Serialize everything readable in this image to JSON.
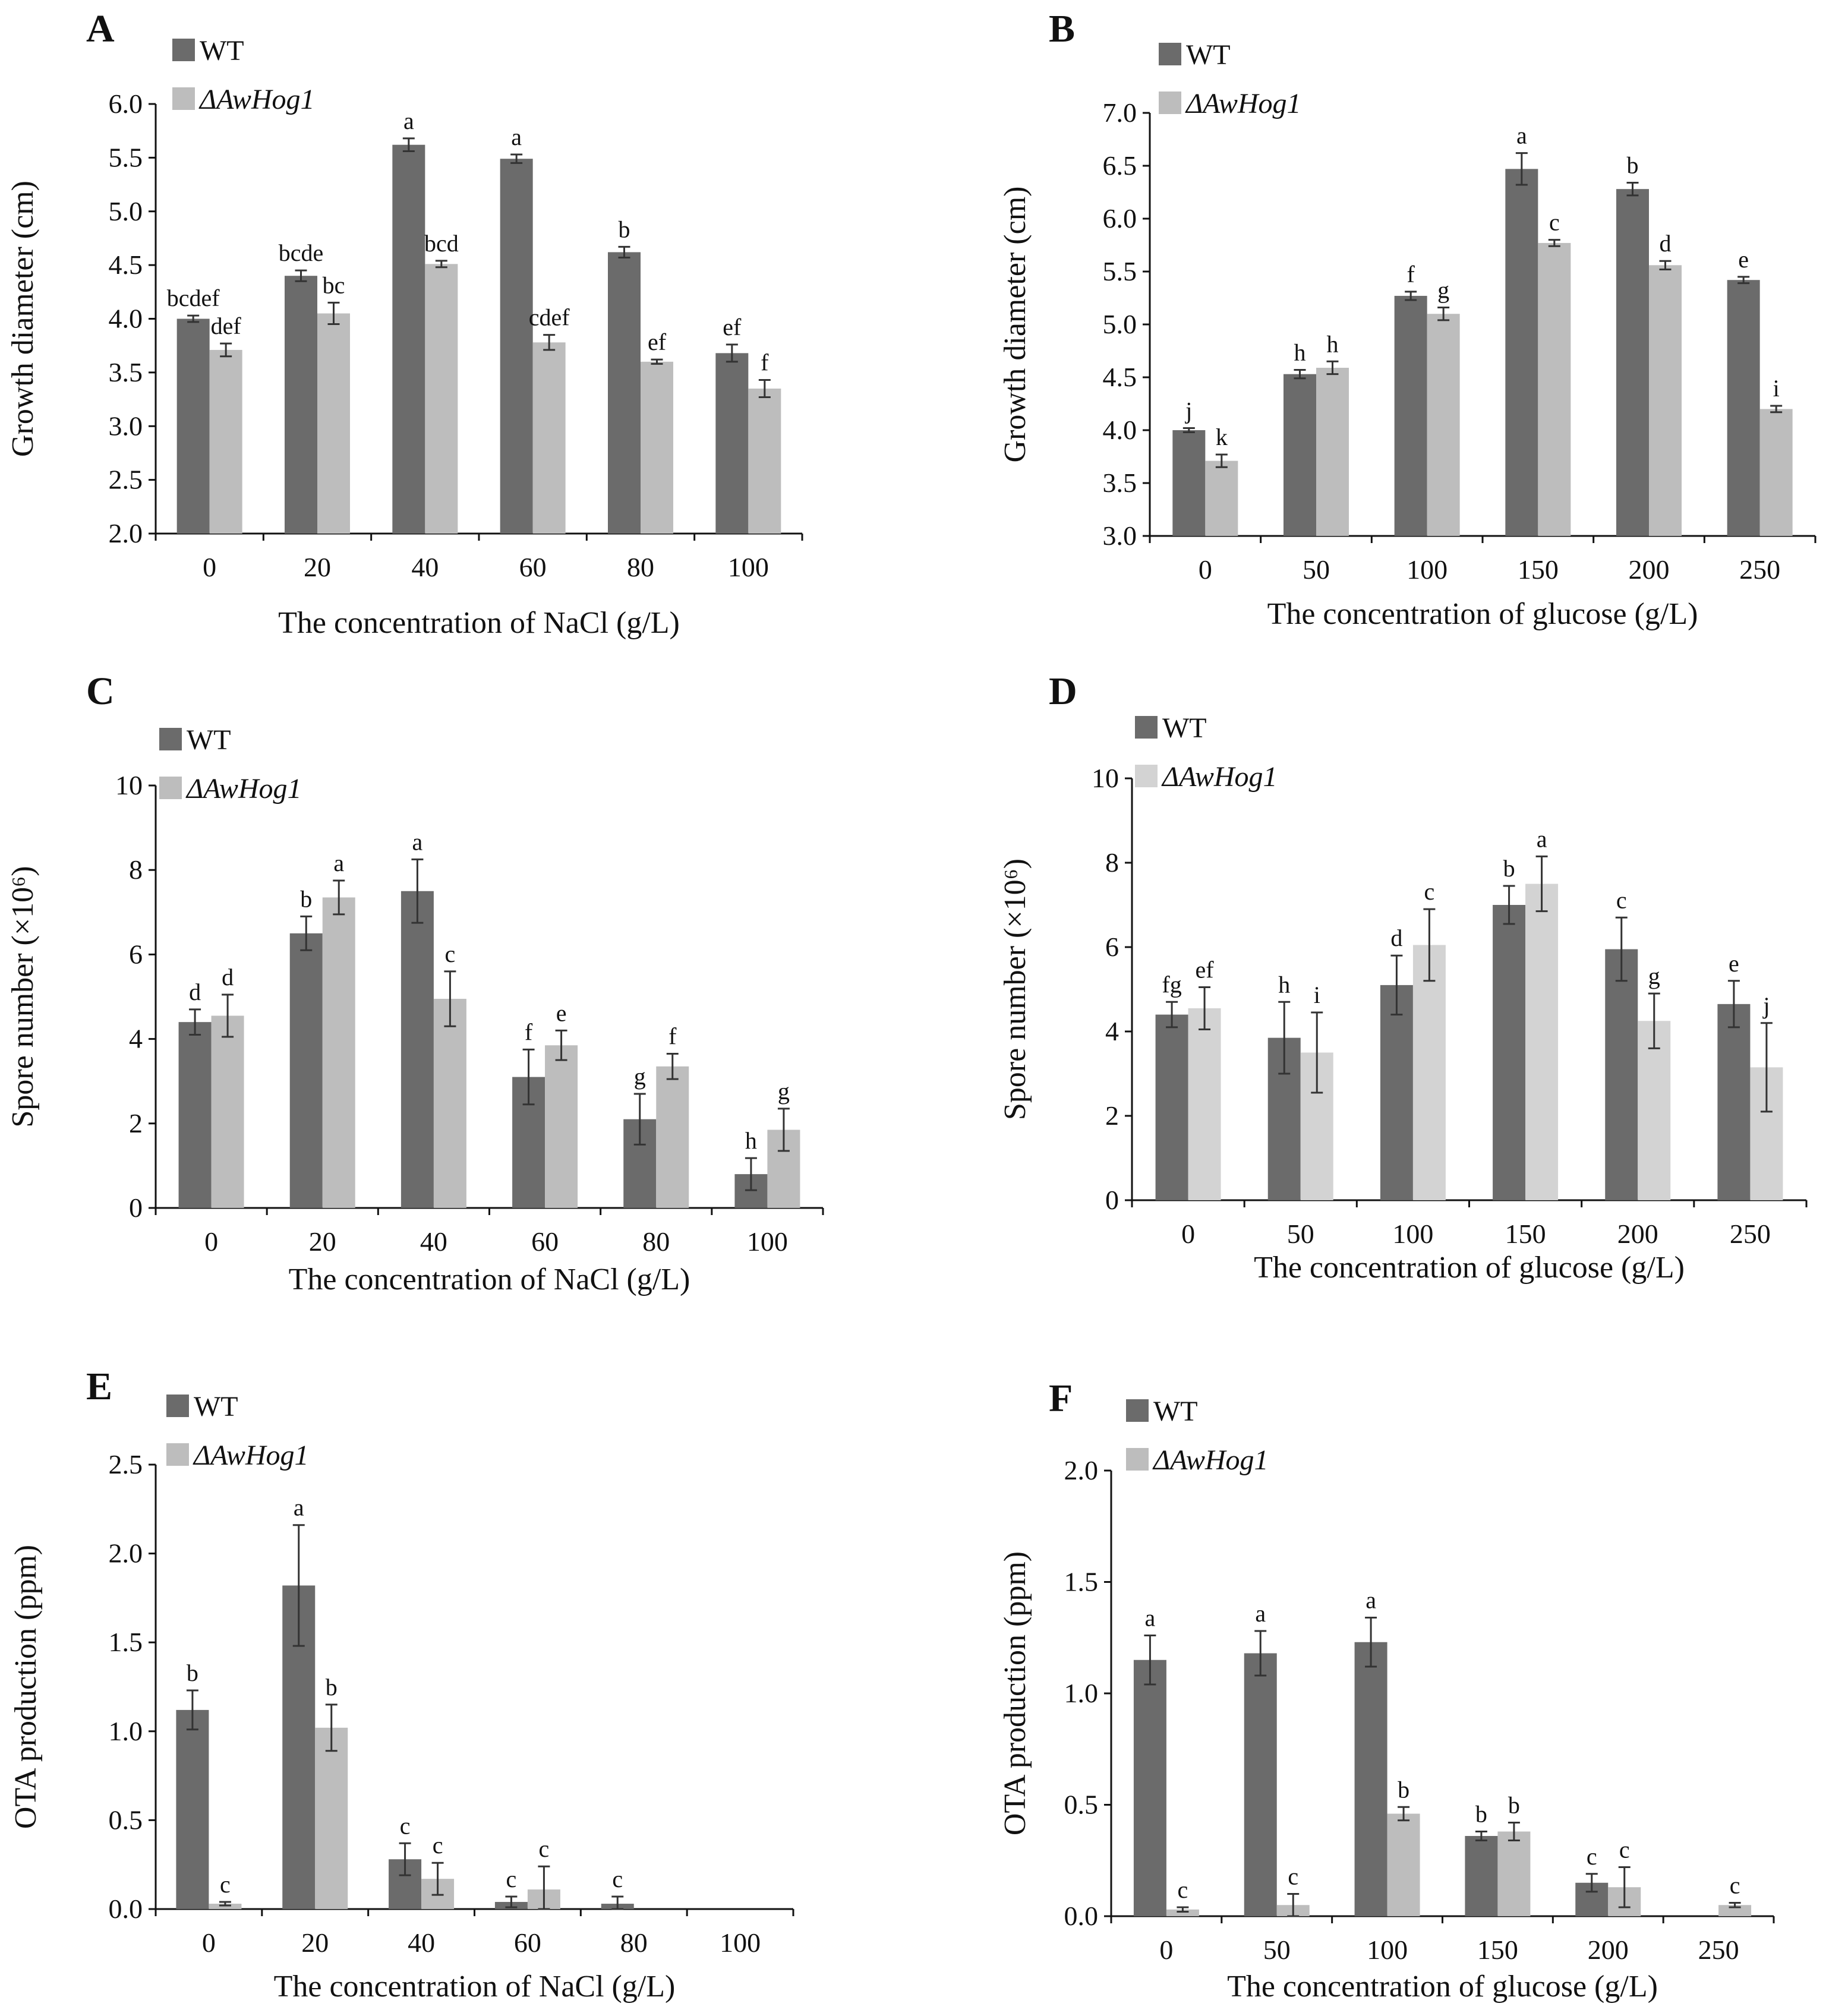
{
  "figure": {
    "colors": {
      "wt": "#6b6b6b",
      "mutant": "#bdbdbd",
      "mutant_light": "#d3d3d3",
      "axis": "#111111",
      "error_bar": "#333333"
    }
  },
  "chart_data": [
    {
      "panel": "A",
      "type": "bar",
      "legend": [
        "WT",
        "ΔAwHog1"
      ],
      "xlabel": "The concentration of NaCl (g/L)",
      "ylabel": "Growth diameter (cm)",
      "ylim": [
        2.0,
        6.0
      ],
      "yticks": [
        "2.0",
        "2.5",
        "3.0",
        "3.5",
        "4.0",
        "4.5",
        "5.0",
        "5.5",
        "6.0"
      ],
      "categories": [
        "0",
        "20",
        "40",
        "60",
        "80",
        "100"
      ],
      "series": [
        {
          "name": "WT",
          "values": [
            4.0,
            4.4,
            5.62,
            5.49,
            4.62,
            3.68
          ],
          "errors": [
            0.03,
            0.05,
            0.06,
            0.04,
            0.05,
            0.08
          ],
          "letters": [
            "bcdef",
            "bcde",
            "a",
            "a",
            "b",
            "ef"
          ]
        },
        {
          "name": "ΔAwHog1",
          "values": [
            3.71,
            4.05,
            4.51,
            3.78,
            3.6,
            3.35
          ],
          "errors": [
            0.06,
            0.1,
            0.03,
            0.07,
            0.02,
            0.08
          ],
          "letters": [
            "def",
            "bc",
            "bcd",
            "cdef",
            "ef",
            "f"
          ]
        }
      ]
    },
    {
      "panel": "B",
      "type": "bar",
      "legend": [
        "WT",
        "ΔAwHog1"
      ],
      "xlabel": "The concentration of glucose (g/L)",
      "ylabel": "Growth diameter (cm)",
      "ylim": [
        3.0,
        7.0
      ],
      "yticks": [
        "3.0",
        "3.5",
        "4.0",
        "4.5",
        "5.0",
        "5.5",
        "6.0",
        "6.5",
        "7.0"
      ],
      "categories": [
        "0",
        "50",
        "100",
        "150",
        "200",
        "250"
      ],
      "series": [
        {
          "name": "WT",
          "values": [
            4.0,
            4.53,
            5.27,
            6.47,
            6.28,
            5.42
          ],
          "errors": [
            0.02,
            0.04,
            0.04,
            0.15,
            0.06,
            0.03
          ],
          "letters": [
            "j",
            "h",
            "f",
            "a",
            "b",
            "e"
          ]
        },
        {
          "name": "ΔAwHog1",
          "values": [
            3.71,
            4.59,
            5.1,
            5.77,
            5.56,
            4.2
          ],
          "errors": [
            0.06,
            0.06,
            0.06,
            0.03,
            0.04,
            0.03
          ],
          "letters": [
            "k",
            "h",
            "g",
            "c",
            "d",
            "i"
          ]
        }
      ]
    },
    {
      "panel": "C",
      "type": "bar",
      "legend": [
        "WT",
        "ΔAwHog1"
      ],
      "xlabel": "The concentration of NaCl (g/L)",
      "ylabel": "Spore number (×10⁶)",
      "ylim": [
        0,
        10
      ],
      "yticks": [
        "0",
        "2",
        "4",
        "6",
        "8",
        "10"
      ],
      "categories": [
        "0",
        "20",
        "40",
        "60",
        "80",
        "100"
      ],
      "series": [
        {
          "name": "WT",
          "values": [
            4.4,
            6.5,
            7.5,
            3.1,
            2.1,
            0.8
          ],
          "errors": [
            0.3,
            0.4,
            0.75,
            0.65,
            0.6,
            0.38
          ],
          "letters": [
            "d",
            "b",
            "a",
            "f",
            "g",
            "h"
          ]
        },
        {
          "name": "ΔAwHog1",
          "values": [
            4.55,
            7.35,
            4.95,
            3.85,
            3.35,
            1.85
          ],
          "errors": [
            0.5,
            0.4,
            0.65,
            0.35,
            0.3,
            0.5
          ],
          "letters": [
            "d",
            "a",
            "c",
            "e",
            "f",
            "g"
          ]
        }
      ]
    },
    {
      "panel": "D",
      "type": "bar",
      "legend": [
        "WT",
        "ΔAwHog1"
      ],
      "xlabel": "The concentration of glucose (g/L)",
      "ylabel": "Spore number (×10⁶)",
      "ylim": [
        0,
        10
      ],
      "yticks": [
        "0",
        "2",
        "4",
        "6",
        "8",
        "10"
      ],
      "categories": [
        "0",
        "50",
        "100",
        "150",
        "200",
        "250"
      ],
      "series": [
        {
          "name": "WT",
          "values": [
            4.4,
            3.85,
            5.1,
            7.0,
            5.95,
            4.65
          ],
          "errors": [
            0.3,
            0.85,
            0.7,
            0.45,
            0.75,
            0.55
          ],
          "letters": [
            "fg",
            "h",
            "d",
            "b",
            "c",
            "e"
          ]
        },
        {
          "name": "ΔAwHog1",
          "values": [
            4.55,
            3.5,
            6.05,
            7.5,
            4.25,
            3.15
          ],
          "errors": [
            0.5,
            0.95,
            0.85,
            0.65,
            0.65,
            1.05
          ],
          "letters": [
            "ef",
            "i",
            "c",
            "a",
            "g",
            "j"
          ]
        }
      ]
    },
    {
      "panel": "E",
      "type": "bar",
      "legend": [
        "WT",
        "ΔAwHog1"
      ],
      "xlabel": "The concentration of NaCl (g/L)",
      "ylabel": "OTA production (ppm)",
      "ylim": [
        0,
        2.5
      ],
      "yticks": [
        "0.0",
        "0.5",
        "1.0",
        "1.5",
        "2.0",
        "2.5"
      ],
      "categories": [
        "0",
        "20",
        "40",
        "60",
        "80",
        "100"
      ],
      "series": [
        {
          "name": "WT",
          "values": [
            1.12,
            1.82,
            0.28,
            0.04,
            0.03,
            0.0
          ],
          "errors": [
            0.11,
            0.34,
            0.09,
            0.03,
            0.04,
            0.0
          ],
          "letters": [
            "b",
            "a",
            "c",
            "c",
            "c",
            ""
          ]
        },
        {
          "name": "ΔAwHog1",
          "values": [
            0.03,
            1.02,
            0.17,
            0.11,
            0.0,
            0.0
          ],
          "errors": [
            0.01,
            0.13,
            0.09,
            0.13,
            0.0,
            0.0
          ],
          "letters": [
            "c",
            "b",
            "c",
            "c",
            "",
            ""
          ]
        }
      ]
    },
    {
      "panel": "F",
      "type": "bar",
      "legend": [
        "WT",
        "ΔAwHog1"
      ],
      "xlabel": "The concentration of glucose (g/L)",
      "ylabel": "OTA production (ppm)",
      "ylim": [
        0,
        2.0
      ],
      "yticks": [
        "0.0",
        "0.5",
        "1.0",
        "1.5",
        "2.0"
      ],
      "categories": [
        "0",
        "50",
        "100",
        "150",
        "200",
        "250"
      ],
      "series": [
        {
          "name": "WT",
          "values": [
            1.15,
            1.18,
            1.23,
            0.36,
            0.15,
            0.0
          ],
          "errors": [
            0.11,
            0.1,
            0.11,
            0.02,
            0.04,
            0.0
          ],
          "letters": [
            "a",
            "a",
            "a",
            "b",
            "c",
            ""
          ]
        },
        {
          "name": "ΔAwHog1",
          "values": [
            0.03,
            0.05,
            0.46,
            0.38,
            0.13,
            0.05
          ],
          "errors": [
            0.01,
            0.05,
            0.03,
            0.04,
            0.09,
            0.01
          ],
          "letters": [
            "c",
            "c",
            "b",
            "b",
            "c",
            "c"
          ]
        }
      ]
    }
  ]
}
